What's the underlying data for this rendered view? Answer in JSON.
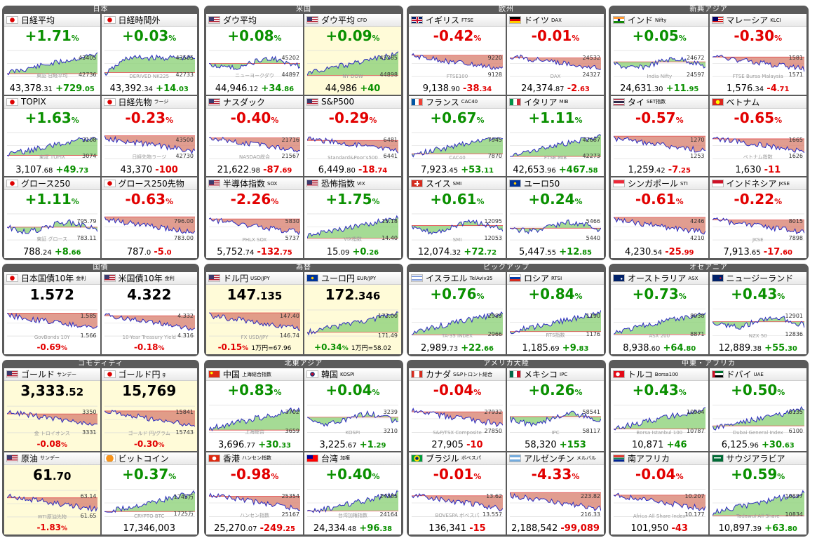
{
  "groups": [
    {
      "title": "日本",
      "tiles": [
        {
          "name": "日経平均",
          "sub": "",
          "flag": "jp",
          "pct": "+1.71",
          "dir": "pos",
          "val": "43,378",
          "dec": ".31",
          "chg": "+729",
          "chgd": ".05",
          "ymax": "43405",
          "ymin": "42736",
          "wm": "東証 日経平均",
          "chart": "up"
        },
        {
          "name": "日経時間外",
          "sub": "",
          "flag": "jp",
          "pct": "+0.03",
          "dir": "pos",
          "val": "43,392",
          "dec": ".34",
          "chg": "+14",
          "chgd": ".03",
          "ymax": "43505",
          "ymin": "42733",
          "wm": "DERIVED NK225",
          "chart": "flatup"
        },
        {
          "name": "TOPIX",
          "sub": "",
          "flag": "jp",
          "pct": "+1.63",
          "dir": "pos",
          "val": "3,107",
          "dec": ".68",
          "chg": "+49",
          "chgd": ".73",
          "ymax": "3108",
          "ymin": "3074",
          "wm": "東証 TOPIX",
          "chart": "up"
        },
        {
          "name": "日経先物",
          "sub": "ラージ",
          "flag": "jp",
          "pct": "-0.23",
          "dir": "neg",
          "val": "43,370",
          "dec": "",
          "chg": "-100",
          "chgd": "",
          "ymax": "43500",
          "ymin": "42730",
          "wm": "日経先物ラージ",
          "chart": "down"
        },
        {
          "name": "グロース250",
          "sub": "",
          "flag": "jp",
          "pct": "+1.11",
          "dir": "pos",
          "val": "788",
          "dec": ".24",
          "chg": "+8",
          "chgd": ".66",
          "ymax": "795.79",
          "ymin": "783.11",
          "wm": "東証 グロース",
          "chart": "wave"
        },
        {
          "name": "グロース250先物",
          "sub": "",
          "flag": "jp",
          "pct": "-0.63",
          "dir": "neg",
          "val": "787",
          "dec": ".0",
          "chg": "-5",
          "chgd": ".0",
          "ymax": "796.00",
          "ymin": "783.00",
          "wm": "",
          "chart": "down"
        }
      ]
    },
    {
      "title": "米国",
      "tiles": [
        {
          "name": "ダウ平均",
          "sub": "",
          "flag": "us",
          "pct": "+0.08",
          "dir": "pos",
          "val": "44,946",
          "dec": ".12",
          "chg": "+34",
          "chgd": ".86",
          "ymax": "45202",
          "ymin": "44897",
          "wm": "ニューヨークダウ",
          "chart": "wave"
        },
        {
          "name": "ダウ平均",
          "sub": "CFD",
          "flag": "us",
          "pct": "+0.09",
          "dir": "pos",
          "val": "44,986",
          "dec": "",
          "chg": "+40",
          "chgd": "",
          "ymax": "45285",
          "ymin": "44898",
          "wm": "NY DOW",
          "chart": "up",
          "hl": true
        },
        {
          "name": "ナスダック",
          "sub": "",
          "flag": "us",
          "pct": "-0.40",
          "dir": "neg",
          "val": "21,622",
          "dec": ".98",
          "chg": "-87",
          "chgd": ".69",
          "ymax": "21716",
          "ymin": "21567",
          "wm": "NASDAQ総合",
          "chart": "down"
        },
        {
          "name": "S&P500",
          "sub": "",
          "flag": "us",
          "pct": "-0.29",
          "dir": "neg",
          "val": "6,449",
          "dec": ".80",
          "chg": "-18",
          "chgd": ".74",
          "ymax": "6481",
          "ymin": "6441",
          "wm": "Standard&Poor's500",
          "chart": "down"
        },
        {
          "name": "半導体指数",
          "sub": "SOX",
          "flag": "us",
          "pct": "-2.26",
          "dir": "neg",
          "val": "5,752",
          "dec": ".74",
          "chg": "-132",
          "chgd": ".75",
          "ymax": "5830",
          "ymin": "5737",
          "wm": "PHLX SOX",
          "chart": "down"
        },
        {
          "name": "恐怖指数",
          "sub": "VIX",
          "flag": "us",
          "pct": "+1.75",
          "dir": "pos",
          "val": "15",
          "dec": ".09",
          "chg": "+0",
          "chgd": ".26",
          "ymax": "15.18",
          "ymin": "14.40",
          "wm": "VIX指数",
          "chart": "up"
        }
      ]
    },
    {
      "title": "欧州",
      "tiles": [
        {
          "name": "イギリス",
          "sub": "FTSE",
          "flag": "gb",
          "pct": "-0.42",
          "dir": "neg",
          "val": "9,138",
          "dec": ".90",
          "chg": "-38",
          "chgd": ".34",
          "ymax": "9220",
          "ymin": "9128",
          "wm": "FTSE100",
          "chart": "down"
        },
        {
          "name": "ドイツ",
          "sub": "DAX",
          "flag": "de",
          "pct": "-0.01",
          "dir": "neg",
          "val": "24,374",
          "dec": ".87",
          "chg": "-2",
          "chgd": ".63",
          "ymax": "24532",
          "ymin": "24327",
          "wm": "DAX",
          "chart": "down"
        },
        {
          "name": "フランス",
          "sub": "CAC40",
          "flag": "fr",
          "pct": "+0.67",
          "dir": "pos",
          "val": "7,923",
          "dec": ".45",
          "chg": "+53",
          "chgd": ".11",
          "ymax": "7945",
          "ymin": "7870",
          "wm": "CAC40",
          "chart": "up"
        },
        {
          "name": "イタリア",
          "sub": "MIB",
          "flag": "it",
          "pct": "+1.11",
          "dir": "pos",
          "val": "42,653",
          "dec": ".96",
          "chg": "+467",
          "chgd": ".58",
          "ymax": "42687",
          "ymin": "42273",
          "wm": "FTSE MIB",
          "chart": "up"
        },
        {
          "name": "スイス",
          "sub": "SMI",
          "flag": "ch",
          "pct": "+0.61",
          "dir": "pos",
          "val": "12,074",
          "dec": ".32",
          "chg": "+72",
          "chgd": ".72",
          "ymax": "12095",
          "ymin": "12053",
          "wm": "SMI",
          "chart": "wave"
        },
        {
          "name": "ユーロ50",
          "sub": "",
          "flag": "eu",
          "pct": "+0.24",
          "dir": "pos",
          "val": "5,447",
          "dec": ".55",
          "chg": "+12",
          "chgd": ".85",
          "ymax": "5466",
          "ymin": "5440",
          "wm": "",
          "chart": "wave"
        }
      ]
    },
    {
      "title": "新興アジア",
      "tiles": [
        {
          "name": "インド",
          "sub": "Nifty",
          "flag": "in",
          "pct": "+0.05",
          "dir": "pos",
          "val": "24,631",
          "dec": ".30",
          "chg": "+11",
          "chgd": ".95",
          "ymax": "24672",
          "ymin": "24597",
          "wm": "India Nifty",
          "chart": "wave"
        },
        {
          "name": "マレーシア",
          "sub": "KLCI",
          "flag": "my",
          "pct": "-0.30",
          "dir": "neg",
          "val": "1,576",
          "dec": ".34",
          "chg": "-4",
          "chgd": ".71",
          "ymax": "1581",
          "ymin": "1571",
          "wm": "FTSE Bursa Malaysia",
          "chart": "down"
        },
        {
          "name": "タイ",
          "sub": "SET指数",
          "flag": "th",
          "pct": "-0.57",
          "dir": "neg",
          "val": "1,259",
          "dec": ".42",
          "chg": "-7",
          "chgd": ".25",
          "ymax": "1270",
          "ymin": "1253",
          "wm": "",
          "chart": "down"
        },
        {
          "name": "ベトナム",
          "sub": "",
          "flag": "vn",
          "pct": "-0.65",
          "dir": "neg",
          "val": "1,630",
          "dec": "",
          "chg": "-11",
          "chgd": "",
          "ymax": "1665",
          "ymin": "1626",
          "wm": "ベトナム指数",
          "chart": "down"
        },
        {
          "name": "シンガポール",
          "sub": "STI",
          "flag": "sg",
          "pct": "-0.61",
          "dir": "neg",
          "val": "4,230",
          "dec": ".54",
          "chg": "-25",
          "chgd": ".99",
          "ymax": "4246",
          "ymin": "4210",
          "wm": "",
          "chart": "down"
        },
        {
          "name": "インドネシア",
          "sub": "JKSE",
          "flag": "id",
          "pct": "-0.22",
          "dir": "neg",
          "val": "7,913",
          "dec": ".65",
          "chg": "-17",
          "chgd": ".60",
          "ymax": "8015",
          "ymin": "7898",
          "wm": "JKSE",
          "chart": "down"
        }
      ]
    },
    {
      "title": "国債",
      "bond": true,
      "tiles": [
        {
          "name": "日本国債10年",
          "sub": "金利",
          "flag": "jp",
          "pct": "-0.69",
          "dir": "neg",
          "rate": "1.572",
          "ymax": "1.585",
          "ymin": "1.566",
          "wm": "GovBonds 10Y",
          "chart": "down"
        },
        {
          "name": "米国債10年",
          "sub": "金利",
          "flag": "us",
          "pct": "-0.18",
          "dir": "neg",
          "rate": "4.322",
          "ymax": "4.332",
          "ymin": "4.316",
          "wm": "10-Year Treasury Yield",
          "chart": "down"
        }
      ]
    },
    {
      "title": "為替",
      "bond": true,
      "tiles": [
        {
          "name": "ドル円",
          "sub": "USD/JPY",
          "flag": "us",
          "pct": "-0.15",
          "dir": "neg",
          "rate": "147",
          "rdec": ".135",
          "ymax": "147.40",
          "ymin": "146.74",
          "per": "1万円=67.96",
          "wm": "FX USD/JPY",
          "chart": "down",
          "hl": true
        },
        {
          "name": "ユーロ円",
          "sub": "EUR/JPY",
          "flag": "eu",
          "pct": "+0.34",
          "dir": "pos",
          "rate": "172",
          "rdec": ".346",
          "ymax": "173.00",
          "ymin": "171.49",
          "per": "1万円=58.02",
          "wm": "",
          "chart": "up",
          "hl": true
        }
      ]
    },
    {
      "title": "ピックアップ",
      "tiles": [
        {
          "name": "イスラエル",
          "sub": "TelAviv35",
          "flag": "il",
          "pct": "+0.76",
          "dir": "pos",
          "val": "2,989",
          "dec": ".73",
          "chg": "+22",
          "chgd": ".66",
          "ymax": "2989",
          "ymin": "2966",
          "wm": "TA-35 INDEX",
          "chart": "up"
        },
        {
          "name": "ロシア",
          "sub": "RTSI",
          "flag": "ru",
          "pct": "+0.84",
          "dir": "pos",
          "val": "1,185",
          "dec": ".69",
          "chg": "+9",
          "chgd": ".83",
          "ymax": "1190",
          "ymin": "1176",
          "wm": "RTS指数",
          "chart": "up"
        }
      ]
    },
    {
      "title": "オセアニア",
      "tiles": [
        {
          "name": "オーストラリア",
          "sub": "ASX",
          "flag": "au",
          "pct": "+0.73",
          "dir": "pos",
          "val": "8,938",
          "dec": ".60",
          "chg": "+64",
          "chgd": ".80",
          "ymax": "8938",
          "ymin": "8871",
          "wm": "ASX 200",
          "chart": "up"
        },
        {
          "name": "ニュージーランド",
          "sub": "",
          "flag": "nz",
          "pct": "+0.43",
          "dir": "pos",
          "val": "12,889",
          "dec": ".38",
          "chg": "+55",
          "chgd": ".30",
          "ymax": "12901",
          "ymin": "12836",
          "wm": "NZX 50",
          "chart": "wave"
        }
      ]
    },
    {
      "title": "コモディティ",
      "tiles": [
        {
          "name": "ゴールド",
          "sub": "サンデー",
          "flag": "us",
          "pct": "-0.08",
          "dir": "neg",
          "rate": "3,333",
          "rdec": ".52",
          "ymax": "3350",
          "ymin": "3331",
          "wm": "金 トロイオンス",
          "chart": "down",
          "hl": true,
          "bondstyle": true
        },
        {
          "name": "ゴールド円",
          "sub": "g",
          "flag": "jp",
          "pct": "-0.30",
          "dir": "neg",
          "rate": "15,769",
          "rdec": "",
          "ymax": "15841",
          "ymin": "15743",
          "wm": "ゴールド 円/グラム",
          "chart": "down",
          "hl": true,
          "bondstyle": true
        },
        {
          "name": "原油",
          "sub": "サンデー",
          "flag": "us",
          "pct": "-1.83",
          "dir": "neg",
          "rate": "61",
          "rdec": ".70",
          "ymax": "63.14",
          "ymin": "61.65",
          "wm": "WTI原油先物",
          "chart": "down",
          "hl": true,
          "bondstyle": true
        },
        {
          "name": "ビットコイン",
          "sub": "",
          "flag": "btc",
          "pct": "+0.37",
          "dir": "pos",
          "val": "17,346,003",
          "dec": "",
          "chg": "",
          "chgd": "",
          "ymax": "1745万",
          "ymin": "1725万",
          "wm": "CRYPTO BTC",
          "chart": "up"
        }
      ]
    },
    {
      "title": "北東アジア",
      "tiles": [
        {
          "name": "中国",
          "sub": "上海総合指数",
          "flag": "cn",
          "pct": "+0.83",
          "dir": "pos",
          "val": "3,696",
          "dec": ".77",
          "chg": "+30",
          "chgd": ".33",
          "ymax": "3702",
          "ymin": "3659",
          "wm": "上海総合",
          "chart": "up"
        },
        {
          "name": "韓国",
          "sub": "KOSPI",
          "flag": "kr",
          "pct": "+0.04",
          "dir": "pos",
          "val": "3,225",
          "dec": ".67",
          "chg": "+1",
          "chgd": ".29",
          "ymax": "3239",
          "ymin": "3210",
          "wm": "KOSPI",
          "chart": "wave"
        },
        {
          "name": "香港",
          "sub": "ハンセン指数",
          "flag": "hk",
          "pct": "-0.98",
          "dir": "neg",
          "val": "25,270",
          "dec": ".07",
          "chg": "-249",
          "chgd": ".25",
          "ymax": "25354",
          "ymin": "25167",
          "wm": "ハンセン指数",
          "chart": "down"
        },
        {
          "name": "台湾",
          "sub": "加権",
          "flag": "tw",
          "pct": "+0.40",
          "dir": "pos",
          "val": "24,334",
          "dec": ".48",
          "chg": "+96",
          "chgd": ".38",
          "ymax": "24385",
          "ymin": "24164",
          "wm": "台湾加権指数",
          "chart": "up"
        }
      ]
    },
    {
      "title": "アメリカ大陸",
      "tiles": [
        {
          "name": "カナダ",
          "sub": "S&Pトロント総合",
          "flag": "ca",
          "pct": "-0.04",
          "dir": "neg",
          "val": "27,905",
          "dec": "",
          "chg": "-10",
          "chgd": "",
          "ymax": "27932",
          "ymin": "27850",
          "wm": "S&P/TSX Composite",
          "chart": "down"
        },
        {
          "name": "メキシコ",
          "sub": "IPC",
          "flag": "mx",
          "pct": "+0.26",
          "dir": "pos",
          "val": "58,320",
          "dec": "",
          "chg": "+153",
          "chgd": "",
          "ymax": "58541",
          "ymin": "58117",
          "wm": "IPC",
          "chart": "wave"
        },
        {
          "name": "ブラジル",
          "sub": "ボベスパ",
          "flag": "br",
          "pct": "-0.01",
          "dir": "neg",
          "val": "136,341",
          "dec": "",
          "chg": "-15",
          "chgd": "",
          "ymax": "13.62",
          "ymin": "13.557",
          "wm": "BOVESPA ボベスパ",
          "chart": "down"
        },
        {
          "name": "アルゼンチン",
          "sub": "メルバル",
          "flag": "ar",
          "pct": "-4.33",
          "dir": "neg",
          "val": "2,188,542",
          "dec": "",
          "chg": "-99,089",
          "chgd": "",
          "ymax": "223.82",
          "ymin": "216.33",
          "wm": "",
          "chart": "down"
        }
      ]
    },
    {
      "title": "中東・アフリカ",
      "tiles": [
        {
          "name": "トルコ",
          "sub": "Borsa100",
          "flag": "tr",
          "pct": "+0.43",
          "dir": "pos",
          "val": "10,871",
          "dec": "",
          "chg": "+46",
          "chgd": "",
          "ymax": "10904",
          "ymin": "10787",
          "wm": "Borsa Istanbul 100",
          "chart": "up"
        },
        {
          "name": "ドバイ",
          "sub": "UAE",
          "flag": "ae",
          "pct": "+0.50",
          "dir": "pos",
          "val": "6,125",
          "dec": ".96",
          "chg": "+30",
          "chgd": ".63",
          "ymax": "6135",
          "ymin": "6100",
          "wm": "Dubai General Index",
          "chart": "up"
        },
        {
          "name": "南アフリカ",
          "sub": "",
          "flag": "za",
          "pct": "-0.04",
          "dir": "neg",
          "val": "101,950",
          "dec": "",
          "chg": "-43",
          "chgd": "",
          "ymax": "10.207",
          "ymin": "10.177",
          "wm": "Africa All Share Index",
          "chart": "down"
        },
        {
          "name": "サウジアラビア",
          "sub": "",
          "flag": "sa",
          "pct": "+0.59",
          "dir": "pos",
          "val": "10,897",
          "dec": ".39",
          "chg": "+63",
          "chgd": ".80",
          "ymax": "10897",
          "ymin": "10834",
          "wm": "Tadawul All Share",
          "chart": "up"
        }
      ]
    }
  ],
  "colors": {
    "up": "#0a9000",
    "down": "#e20000",
    "group_bg": "#5b5b5b",
    "fill_up": "#8fd27a",
    "fill_down": "#d98474",
    "line": "#2c2cc0"
  }
}
